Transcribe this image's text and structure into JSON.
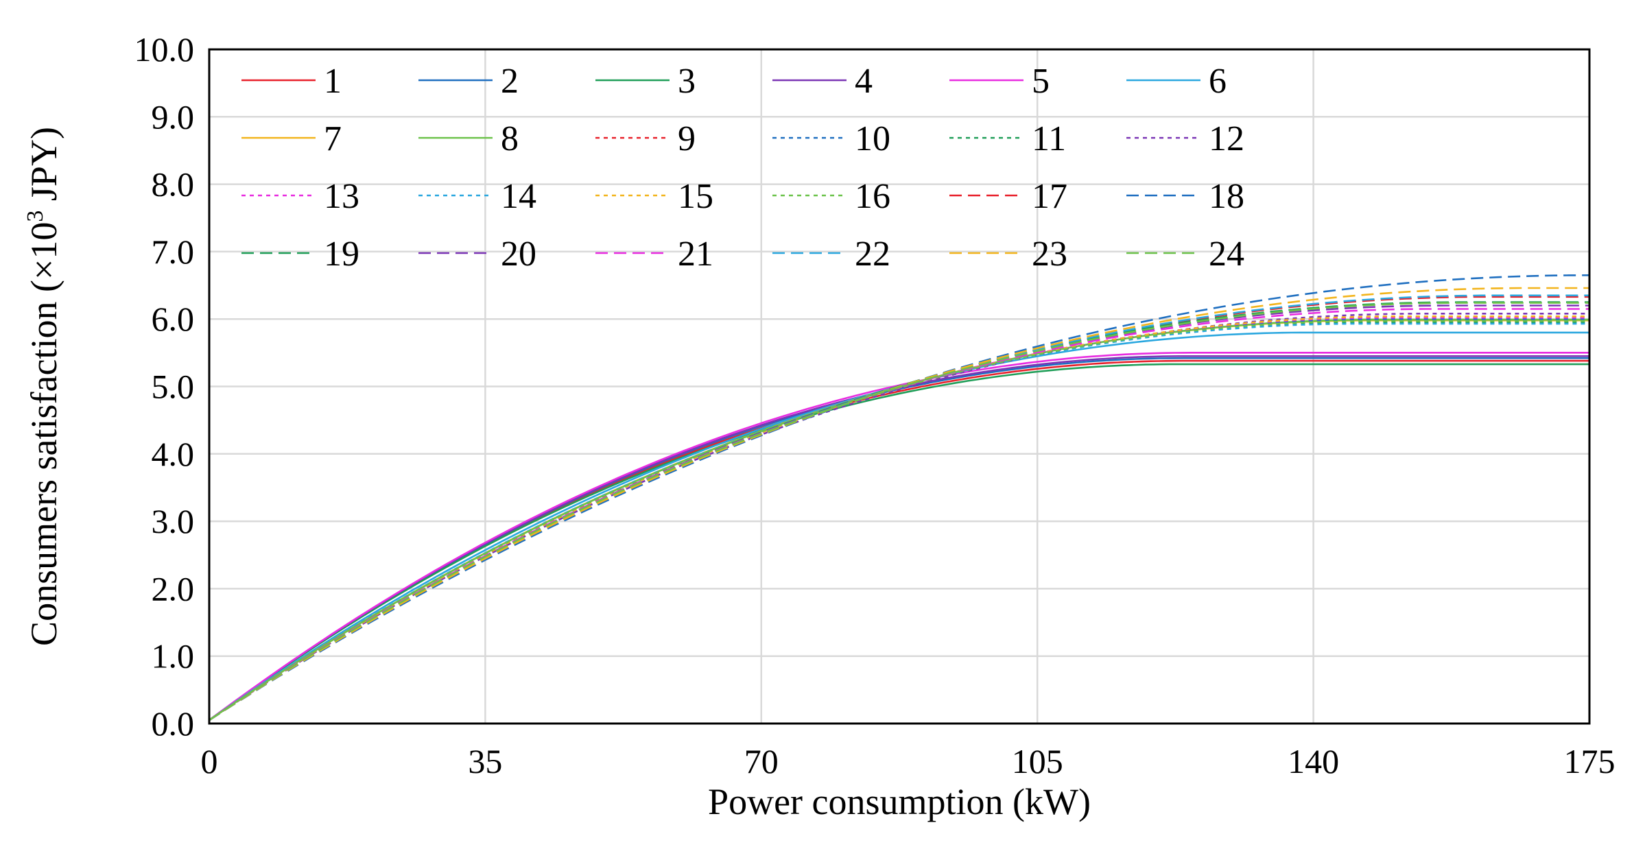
{
  "chart_data": {
    "type": "line",
    "title": "",
    "xlabel": "Power consumption (kW)",
    "ylabel_main": "Consumers satisfaction (×10",
    "ylabel_sup": "3",
    "ylabel_unit": " JPY)",
    "xlim": [
      0,
      175
    ],
    "ylim": [
      0,
      10
    ],
    "x_ticks": [
      0,
      35,
      70,
      105,
      140,
      175
    ],
    "x_tick_labels": [
      "0",
      "35",
      "70",
      "105",
      "140",
      "175"
    ],
    "y_ticks": [
      0,
      1,
      2,
      3,
      4,
      5,
      6,
      7,
      8,
      9,
      10
    ],
    "y_tick_labels": [
      "0.0",
      "1.0",
      "2.0",
      "3.0",
      "4.0",
      "5.0",
      "6.0",
      "7.0",
      "8.0",
      "9.0",
      "10.0"
    ],
    "grid": true,
    "legend_position": "top-left inside, 6 columns",
    "series": [
      {
        "name": "1",
        "color": "#e8212b",
        "dash": "solid",
        "sat_x": 123.4,
        "sat_y": 5.38
      },
      {
        "name": "2",
        "color": "#1f6fc0",
        "dash": "solid",
        "sat_x": 123.6,
        "sat_y": 5.42
      },
      {
        "name": "3",
        "color": "#1f9e58",
        "dash": "solid",
        "sat_x": 122.8,
        "sat_y": 5.33
      },
      {
        "name": "4",
        "color": "#7b35b5",
        "dash": "solid",
        "sat_x": 124.0,
        "sat_y": 5.45
      },
      {
        "name": "5",
        "color": "#e82ce0",
        "dash": "solid",
        "sat_x": 124.5,
        "sat_y": 5.5
      },
      {
        "name": "6",
        "color": "#2aa7df",
        "dash": "solid",
        "sat_x": 139.5,
        "sat_y": 5.8
      },
      {
        "name": "7",
        "color": "#f2b41c",
        "dash": "solid",
        "sat_x": 147.6,
        "sat_y": 5.98
      },
      {
        "name": "8",
        "color": "#6cc24a",
        "dash": "solid",
        "sat_x": 148.2,
        "sat_y": 5.99
      },
      {
        "name": "9",
        "color": "#e8212b",
        "dash": "dotted",
        "sat_x": 150.5,
        "sat_y": 6.03
      },
      {
        "name": "10",
        "color": "#1f6fc0",
        "dash": "dotted",
        "sat_x": 148.8,
        "sat_y": 6.0
      },
      {
        "name": "11",
        "color": "#1f9e58",
        "dash": "dotted",
        "sat_x": 147.0,
        "sat_y": 5.95
      },
      {
        "name": "12",
        "color": "#7b35b5",
        "dash": "dotted",
        "sat_x": 154.0,
        "sat_y": 6.08
      },
      {
        "name": "13",
        "color": "#e82ce0",
        "dash": "dotted",
        "sat_x": 149.5,
        "sat_y": 6.02
      },
      {
        "name": "14",
        "color": "#2aa7df",
        "dash": "dotted",
        "sat_x": 146.0,
        "sat_y": 5.93
      },
      {
        "name": "15",
        "color": "#f2b41c",
        "dash": "dotted",
        "sat_x": 151.0,
        "sat_y": 6.04
      },
      {
        "name": "16",
        "color": "#6cc24a",
        "dash": "dotted",
        "sat_x": 147.8,
        "sat_y": 5.97
      },
      {
        "name": "17",
        "color": "#e8212b",
        "dash": "dashed",
        "sat_x": 162.5,
        "sat_y": 6.33
      },
      {
        "name": "18",
        "color": "#1f6fc0",
        "dash": "dashed",
        "sat_x": 175.0,
        "sat_y": 6.65
      },
      {
        "name": "19",
        "color": "#1f9e58",
        "dash": "dashed",
        "sat_x": 158.5,
        "sat_y": 6.25
      },
      {
        "name": "20",
        "color": "#7b35b5",
        "dash": "dashed",
        "sat_x": 157.0,
        "sat_y": 6.2
      },
      {
        "name": "21",
        "color": "#e82ce0",
        "dash": "dashed",
        "sat_x": 155.5,
        "sat_y": 6.15
      },
      {
        "name": "22",
        "color": "#2aa7df",
        "dash": "dashed",
        "sat_x": 163.0,
        "sat_y": 6.35
      },
      {
        "name": "23",
        "color": "#f2b41c",
        "dash": "dashed",
        "sat_x": 167.5,
        "sat_y": 6.46
      },
      {
        "name": "24",
        "color": "#6cc24a",
        "dash": "dashed",
        "sat_x": 159.0,
        "sat_y": 6.24
      }
    ]
  }
}
